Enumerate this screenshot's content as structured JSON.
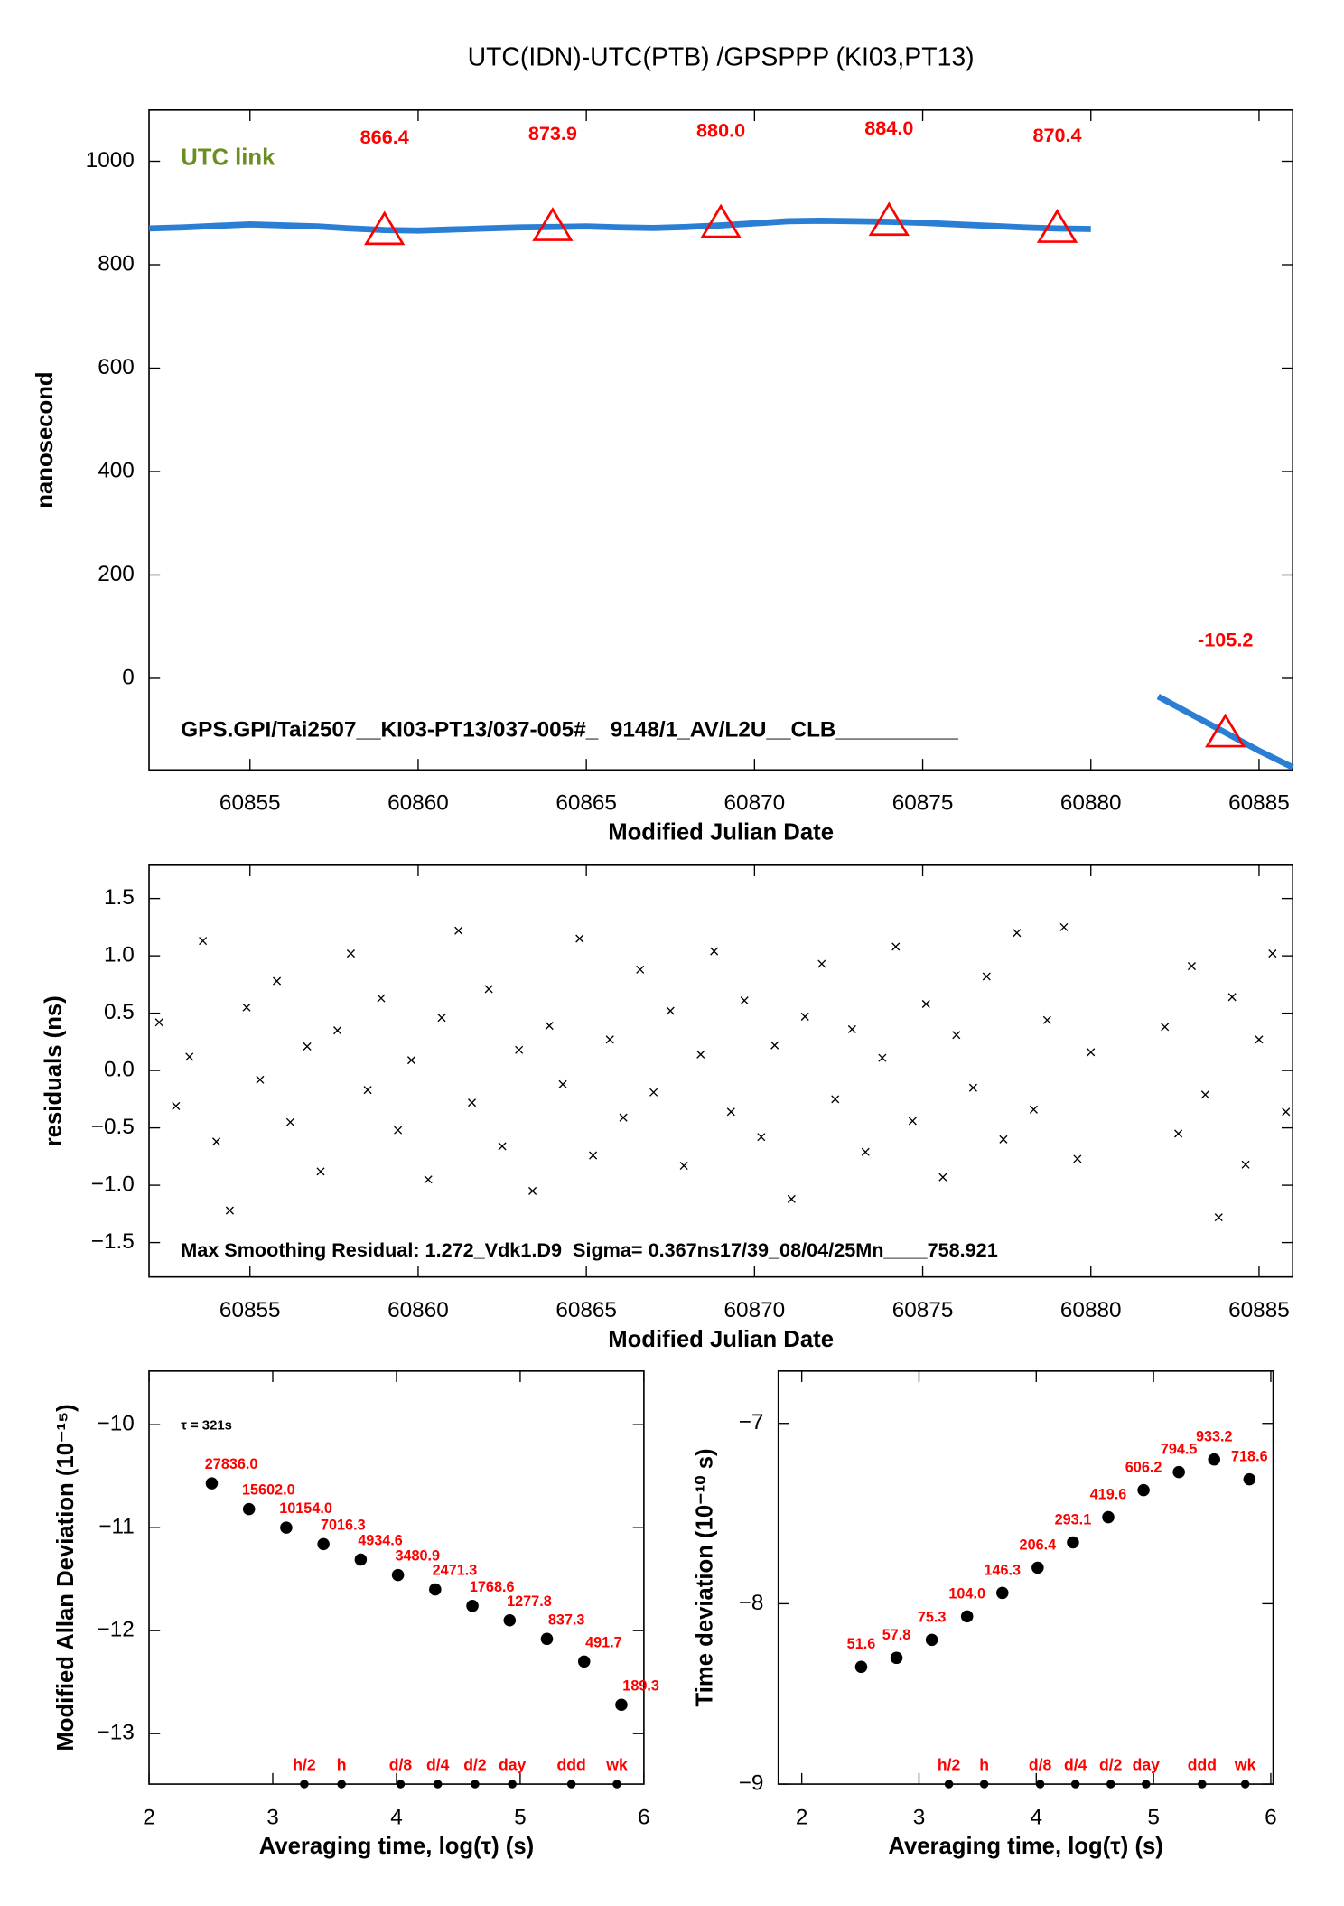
{
  "chart_data": [
    {
      "type": "line",
      "title": "UTC(IDN)-UTC(PTB)  /GPSPPP  (KI03,PT13)",
      "xlabel": "Modified Julian Date",
      "ylabel": "nanosecond",
      "annotations": [
        {
          "text": "UTC link",
          "color": "#6b8e23"
        },
        {
          "text": "GPS.GPI/Tai2507__KI03-PT13/037-005#_  9148/1_AV/L2U__CLB__________",
          "color": "#000000"
        }
      ],
      "xlim": [
        60852,
        60886
      ],
      "xticks": [
        60855,
        60860,
        60865,
        60870,
        60875,
        60880,
        60885
      ],
      "ylim": [
        -177,
        1099
      ],
      "yticks": [
        0,
        200,
        400,
        600,
        800,
        1000
      ],
      "x": [
        60852,
        60853,
        60854,
        60855,
        60856,
        60857,
        60858,
        60859,
        60860,
        60861,
        60862,
        60863,
        60864,
        60865,
        60866,
        60867,
        60868,
        60869,
        60870,
        60871,
        60872,
        60873,
        60874,
        60875,
        60876,
        60877,
        60878,
        60879,
        60880,
        60881,
        60882,
        60883,
        60884,
        60885,
        60886
      ],
      "series": [
        {
          "color": "#2a7fd4",
          "values": [
            870,
            872,
            875,
            878,
            876,
            874,
            870,
            867,
            866,
            868,
            870,
            872,
            873,
            874,
            872,
            871,
            873,
            876,
            880,
            884,
            885,
            884,
            883,
            881,
            878,
            875,
            872,
            870,
            869,
            null,
            -35,
            -70,
            -105,
            -140,
            -172
          ]
        }
      ],
      "markers": {
        "color": "#ff0000",
        "x": [
          60859,
          60864,
          60869,
          60874,
          60879,
          60884
        ],
        "values": [
          866.4,
          873.9,
          880.0,
          884.0,
          870.4,
          -105.2
        ],
        "value_labels": [
          "866.4",
          "873.9",
          "880.0",
          "884.0",
          "870.4",
          "-105.2"
        ]
      }
    },
    {
      "type": "scatter",
      "marker": "x",
      "color": "#000000",
      "xlabel": "Modified Julian Date",
      "ylabel": "residuals (ns)",
      "annotations": [
        {
          "text": "Max Smoothing Residual: 1.272_Vdk1.D9  Sigma= 0.367ns17/39_08/04/25Mn____758.921",
          "color": "#000000"
        }
      ],
      "xlim": [
        60852,
        60886
      ],
      "xticks": [
        60855,
        60860,
        60865,
        60870,
        60875,
        60880,
        60885
      ],
      "ylim": [
        -1.8,
        1.79
      ],
      "yticks": [
        {
          "value": 1.5,
          "label": "1.5"
        },
        {
          "value": 1.0,
          "label": "1.0"
        },
        {
          "value": 0.5,
          "label": "0.5"
        },
        {
          "value": 0,
          "label": "0.0"
        },
        {
          "value": -0.5,
          "label": "−0.5"
        },
        {
          "value": -1.0,
          "label": "−1.0"
        },
        {
          "value": -1.5,
          "label": "−1.5"
        }
      ],
      "x": [
        60852.3,
        60852.8,
        60853.2,
        60853.6,
        60854.0,
        60854.4,
        60854.9,
        60855.3,
        60855.8,
        60856.2,
        60856.7,
        60857.1,
        60857.6,
        60858.0,
        60858.5,
        60858.9,
        60859.4,
        60859.8,
        60860.3,
        60860.7,
        60861.2,
        60861.6,
        60862.1,
        60862.5,
        60863.0,
        60863.4,
        60863.9,
        60864.3,
        60864.8,
        60865.2,
        60865.7,
        60866.1,
        60866.6,
        60867.0,
        60867.5,
        60867.9,
        60868.4,
        60868.8,
        60869.3,
        60869.7,
        60870.2,
        60870.6,
        60871.1,
        60871.5,
        60872.0,
        60872.4,
        60872.9,
        60873.3,
        60873.8,
        60874.2,
        60874.7,
        60875.1,
        60875.6,
        60876.0,
        60876.5,
        60876.9,
        60877.4,
        60877.8,
        60878.3,
        60878.7,
        60879.2,
        60879.6,
        60880.0,
        60882.2,
        60882.6,
        60883.0,
        60883.4,
        60883.8,
        60884.2,
        60884.6,
        60885.0,
        60885.4,
        60885.8
      ],
      "values": [
        0.42,
        -0.31,
        0.12,
        1.13,
        -0.62,
        -1.22,
        0.55,
        -0.08,
        0.78,
        -0.45,
        0.21,
        -0.88,
        0.35,
        1.02,
        -0.17,
        0.63,
        -0.52,
        0.09,
        -0.95,
        0.46,
        1.22,
        -0.28,
        0.71,
        -0.66,
        0.18,
        -1.05,
        0.39,
        -0.12,
        1.15,
        -0.74,
        0.27,
        -0.41,
        0.88,
        -0.19,
        0.52,
        -0.83,
        0.14,
        1.04,
        -0.36,
        0.61,
        -0.58,
        0.22,
        -1.12,
        0.47,
        0.93,
        -0.25,
        0.36,
        -0.71,
        0.11,
        1.08,
        -0.44,
        0.58,
        -0.93,
        0.31,
        -0.15,
        0.82,
        -0.6,
        1.2,
        -0.34,
        0.44,
        1.25,
        -0.77,
        0.16,
        0.38,
        -0.55,
        0.91,
        -0.21,
        -1.28,
        0.64,
        -0.82,
        0.27,
        1.02,
        -0.36
      ]
    },
    {
      "type": "scatter",
      "marker": "dot",
      "color": "#000000",
      "label_color": "#ff0000",
      "xlabel": "Averaging time, log(τ) (s)",
      "ylabel": "Modified Allan Deviation (10⁻¹⁵)",
      "annotations": [
        {
          "text": "τ = 321s",
          "color": "#000000"
        }
      ],
      "xlim": [
        2,
        6
      ],
      "xticks": [
        2,
        3,
        4,
        5,
        6
      ],
      "ylim": [
        -13.49,
        -9.48
      ],
      "yticks": [
        {
          "value": -10,
          "label": "−10"
        },
        {
          "value": -11,
          "label": "−11"
        },
        {
          "value": -12,
          "label": "−12"
        },
        {
          "value": -13,
          "label": "−13"
        }
      ],
      "x": [
        2.507,
        2.808,
        3.109,
        3.41,
        3.711,
        4.012,
        4.313,
        4.614,
        4.915,
        5.216,
        5.517,
        5.818
      ],
      "values": [
        -10.57,
        -10.82,
        -11.0,
        -11.16,
        -11.31,
        -11.46,
        -11.6,
        -11.76,
        -11.9,
        -12.08,
        -12.3,
        -12.72
      ],
      "point_labels": [
        "27836.0",
        "15602.0",
        "10154.0",
        "7016.3",
        "4934.6",
        "3480.9",
        "2471.3",
        "1768.6",
        "1277.8",
        "837.3",
        "491.7",
        "189.3"
      ],
      "reference_marks": {
        "labels": [
          "h/2",
          "h",
          "d/8",
          "d/4",
          "d/2",
          "day",
          "ddd",
          "wk"
        ],
        "x": [
          3.255,
          3.556,
          4.033,
          4.334,
          4.635,
          4.936,
          5.414,
          5.782
        ]
      }
    },
    {
      "type": "scatter",
      "marker": "dot",
      "color": "#000000",
      "label_color": "#ff0000",
      "xlabel": "Averaging time, log(τ) (s)",
      "ylabel": "Time deviation (10⁻¹⁰ s)",
      "xlim": [
        1.8,
        6.02
      ],
      "xticks": [
        2,
        3,
        4,
        5,
        6
      ],
      "ylim": [
        -9,
        -6.71
      ],
      "yticks": [
        {
          "value": -7,
          "label": "−7"
        },
        {
          "value": -8,
          "label": "−8"
        },
        {
          "value": -9,
          "label": "−9"
        }
      ],
      "x": [
        2.507,
        2.808,
        3.109,
        3.41,
        3.711,
        4.012,
        4.313,
        4.614,
        4.915,
        5.216,
        5.517,
        5.818
      ],
      "values": [
        -8.35,
        -8.3,
        -8.2,
        -8.07,
        -7.94,
        -7.8,
        -7.66,
        -7.52,
        -7.37,
        -7.27,
        -7.2,
        -7.31
      ],
      "point_labels": [
        "51.6",
        "57.8",
        "75.3",
        "104.0",
        "146.3",
        "206.4",
        "293.1",
        "419.6",
        "606.2",
        "794.5",
        "933.2",
        "718.6"
      ],
      "reference_marks": {
        "labels": [
          "h/2",
          "h",
          "d/8",
          "d/4",
          "d/2",
          "day",
          "ddd",
          "wk"
        ],
        "x": [
          3.255,
          3.556,
          4.033,
          4.334,
          4.635,
          4.936,
          5.414,
          5.782
        ]
      }
    }
  ]
}
